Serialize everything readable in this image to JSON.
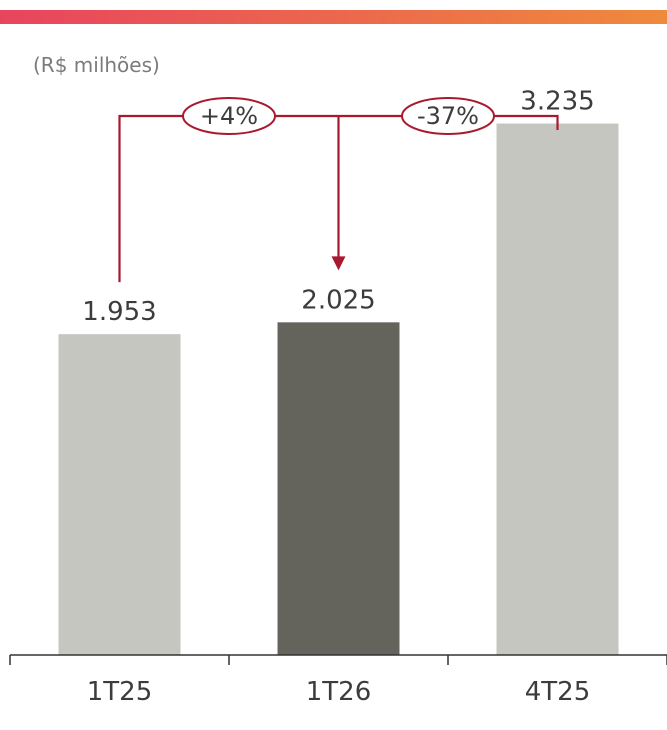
{
  "unit_label": "(R$ milhões)",
  "colors": {
    "bar_default": "#c6c6c1",
    "bar_highlight": "#65645c",
    "annotation": "#a8192e",
    "axis": "#333333",
    "gradient_start": "#e8445e",
    "gradient_end": "#ef8a3c"
  },
  "chart_data": {
    "type": "bar",
    "categories": [
      "1T25",
      "1T26",
      "4T25"
    ],
    "values": [
      1953,
      2025,
      3235
    ],
    "value_labels": [
      "1.953",
      "2.025",
      "3.235"
    ],
    "highlight_index": 1,
    "ylim": [
      0,
      3500
    ],
    "grid": false,
    "title": "",
    "xlabel": "",
    "ylabel": "",
    "annotations": [
      {
        "label": "+4%",
        "from": "1T25",
        "to": "1T26"
      },
      {
        "label": "-37%",
        "from": "4T25",
        "to": "1T26"
      }
    ]
  }
}
